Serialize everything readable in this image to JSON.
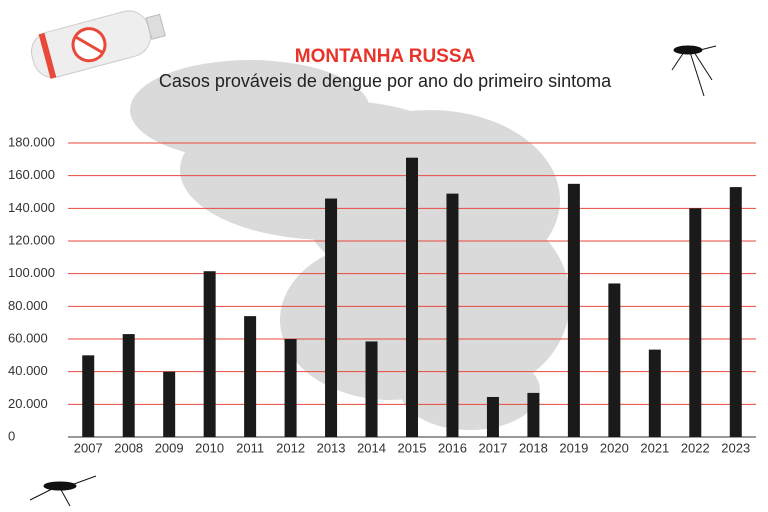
{
  "chart_data": {
    "type": "bar",
    "title": "MONTANHA RUSSA",
    "subtitle": "Casos prováveis de dengue por ano do primeiro sintoma",
    "categories": [
      "2007",
      "2008",
      "2009",
      "2010",
      "2011",
      "2012",
      "2013",
      "2014",
      "2015",
      "2016",
      "2017",
      "2018",
      "2019",
      "2020",
      "2021",
      "2022",
      "2023"
    ],
    "values": [
      50000,
      63000,
      40000,
      101500,
      74000,
      60000,
      146000,
      58500,
      171000,
      149000,
      24500,
      27000,
      155000,
      94000,
      53500,
      140000,
      153000
    ],
    "color": "#1a1a1a",
    "ylim": [
      0,
      180000
    ],
    "yticks": [
      0,
      {
        "value": 20000,
        "label": "20.000"
      },
      {
        "value": 40000,
        "label": "40.000"
      },
      {
        "value": 60000,
        "label": "60.000"
      },
      {
        "value": 80000,
        "label": "80.000"
      },
      {
        "value": 100000,
        "label": "100.000"
      },
      {
        "value": 120000,
        "label": "120.000"
      },
      {
        "value": 140000,
        "label": "140.000"
      },
      {
        "value": 160000,
        "label": "160.000"
      },
      {
        "value": 180000,
        "label": "180.000"
      }
    ],
    "grid": true,
    "grid_color": "#e8493a"
  }
}
